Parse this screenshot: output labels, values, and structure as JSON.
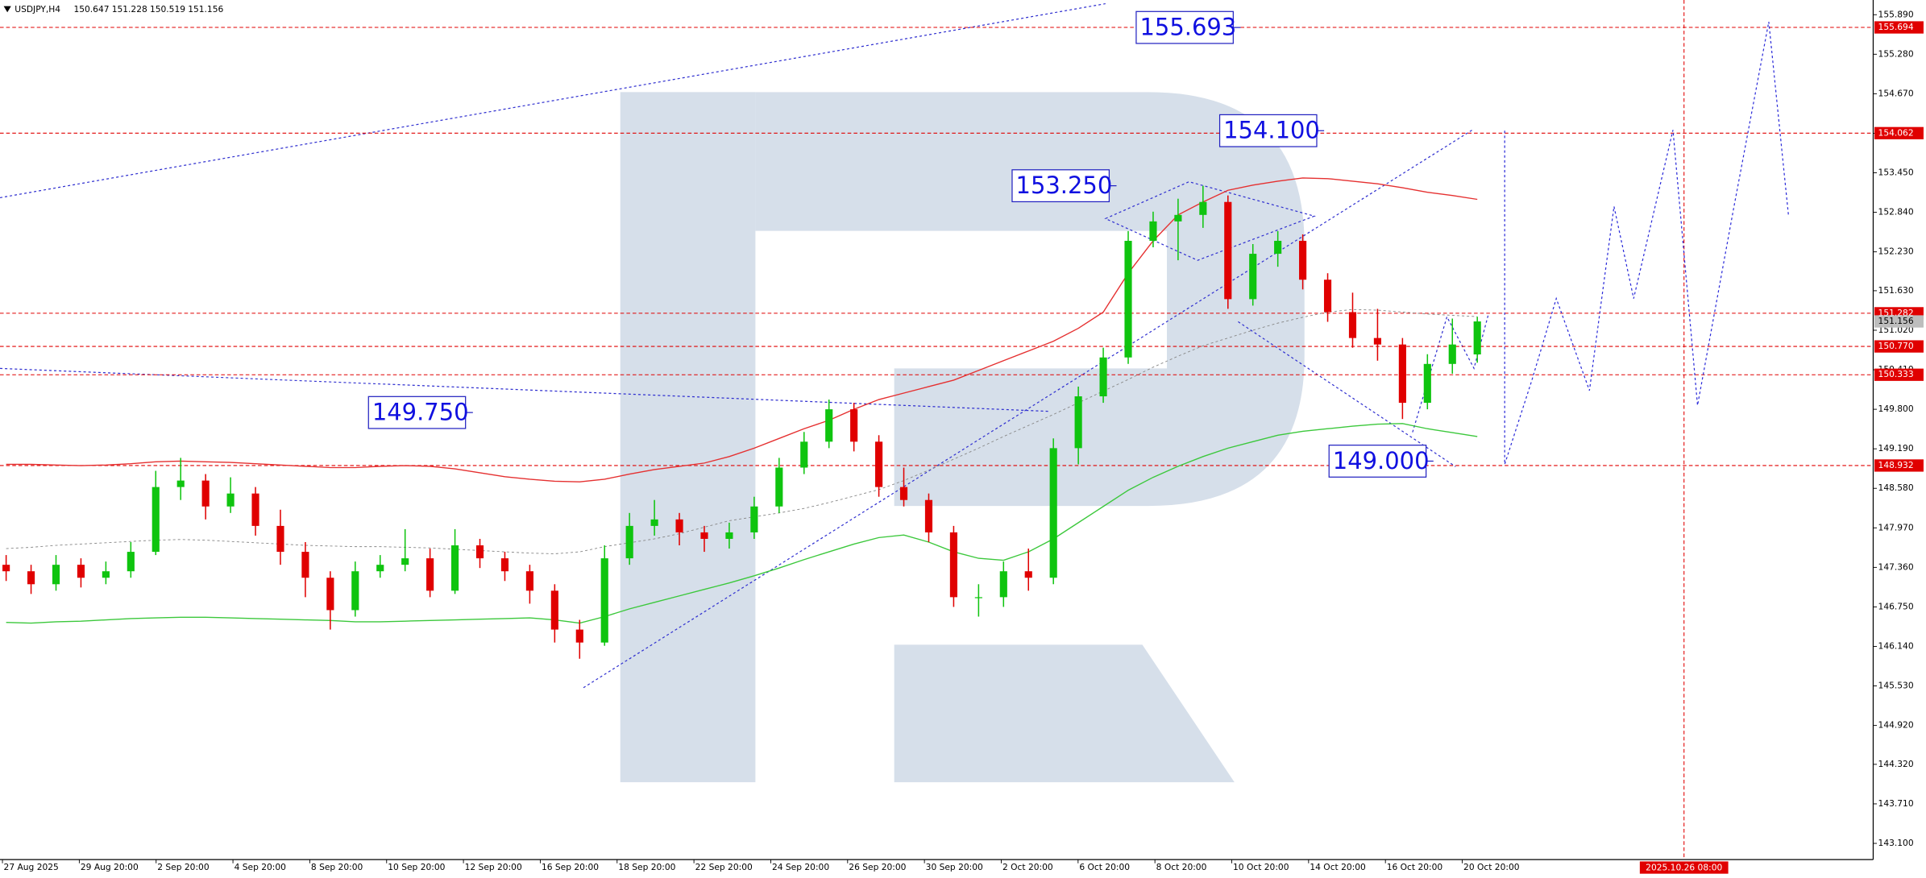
{
  "chart_data": {
    "type": "candlestick",
    "symbol": "USDJPY,H4",
    "ylim": [
      142.85,
      156.117
    ],
    "yticks": [
      {
        "value": 155.89,
        "label": "155.890"
      },
      {
        "value": 155.28,
        "label": "155.280"
      },
      {
        "value": 154.67,
        "label": "154.670"
      },
      {
        "value": 154.06,
        "label": "154.060"
      },
      {
        "value": 153.45,
        "label": "153.450"
      },
      {
        "value": 152.84,
        "label": "152.840"
      },
      {
        "value": 152.23,
        "label": "152.230"
      },
      {
        "value": 151.63,
        "label": "151.630"
      },
      {
        "value": 151.02,
        "label": "151.020"
      },
      {
        "value": 150.41,
        "label": "150.410"
      },
      {
        "value": 149.8,
        "label": "149.800"
      },
      {
        "value": 149.19,
        "label": "149.190"
      },
      {
        "value": 148.58,
        "label": "148.580"
      },
      {
        "value": 147.97,
        "label": "147.970"
      },
      {
        "value": 147.36,
        "label": "147.360"
      },
      {
        "value": 146.75,
        "label": "146.750"
      },
      {
        "value": 146.14,
        "label": "146.140"
      },
      {
        "value": 145.53,
        "label": "145.530"
      },
      {
        "value": 144.92,
        "label": "144.920"
      },
      {
        "value": 144.32,
        "label": "144.320"
      },
      {
        "value": 143.71,
        "label": "143.710"
      },
      {
        "value": 143.1,
        "label": "143.100"
      }
    ],
    "grid": false,
    "xticks": [
      "27 Aug 2025",
      "29 Aug 20:00",
      "2 Sep 20:00",
      "4 Sep 20:00",
      "8 Sep 20:00",
      "10 Sep 20:00",
      "12 Sep 20:00",
      "16 Sep 20:00",
      "18 Sep 20:00",
      "22 Sep 20:00",
      "24 Sep 20:00",
      "26 Sep 20:00",
      "30 Sep 20:00",
      "2 Oct 20:00",
      "6 Oct 20:00",
      "8 Oct 20:00",
      "10 Oct 20:00",
      "14 Oct 20:00",
      "16 Oct 20:00",
      "20 Oct 20:00"
    ],
    "time_marker": "2025.10.26 08:00",
    "up_color": "#0fc40f",
    "down_color": "#e00000",
    "ohlc": [
      [
        147.4,
        147.55,
        147.15,
        147.3
      ],
      [
        147.3,
        147.4,
        146.95,
        147.1
      ],
      [
        147.1,
        147.55,
        147.0,
        147.4
      ],
      [
        147.4,
        147.5,
        147.05,
        147.2
      ],
      [
        147.2,
        147.45,
        147.1,
        147.3
      ],
      [
        147.3,
        147.75,
        147.2,
        147.6
      ],
      [
        147.6,
        148.85,
        147.55,
        148.6
      ],
      [
        148.6,
        149.05,
        148.4,
        148.7
      ],
      [
        148.7,
        148.8,
        148.1,
        148.3
      ],
      [
        148.3,
        148.75,
        148.2,
        148.5
      ],
      [
        148.5,
        148.6,
        147.85,
        148.0
      ],
      [
        148.0,
        148.25,
        147.4,
        147.6
      ],
      [
        147.6,
        147.75,
        146.9,
        147.2
      ],
      [
        147.2,
        147.3,
        146.4,
        146.7
      ],
      [
        146.7,
        147.45,
        146.6,
        147.3
      ],
      [
        147.3,
        147.55,
        147.2,
        147.4
      ],
      [
        147.4,
        147.95,
        147.3,
        147.5
      ],
      [
        147.5,
        147.65,
        146.9,
        147.0
      ],
      [
        147.0,
        147.95,
        146.95,
        147.7
      ],
      [
        147.7,
        147.8,
        147.35,
        147.5
      ],
      [
        147.5,
        147.6,
        147.15,
        147.3
      ],
      [
        147.3,
        147.4,
        146.8,
        147.0
      ],
      [
        147.0,
        147.1,
        146.2,
        146.4
      ],
      [
        146.4,
        146.55,
        145.95,
        146.2
      ],
      [
        146.2,
        147.7,
        146.15,
        147.5
      ],
      [
        147.5,
        148.2,
        147.4,
        148.0
      ],
      [
        148.0,
        148.4,
        147.85,
        148.1
      ],
      [
        148.1,
        148.2,
        147.7,
        147.9
      ],
      [
        147.9,
        148.0,
        147.6,
        147.8
      ],
      [
        147.8,
        148.05,
        147.65,
        147.9
      ],
      [
        147.9,
        148.45,
        147.8,
        148.3
      ],
      [
        148.3,
        149.05,
        148.2,
        148.9
      ],
      [
        148.9,
        149.45,
        148.8,
        149.3
      ],
      [
        149.3,
        149.95,
        149.2,
        149.8
      ],
      [
        149.8,
        149.9,
        149.15,
        149.3
      ],
      [
        149.3,
        149.4,
        148.45,
        148.6
      ],
      [
        148.6,
        148.9,
        148.3,
        148.4
      ],
      [
        148.4,
        148.5,
        147.75,
        147.9
      ],
      [
        147.9,
        148.0,
        146.75,
        146.9
      ],
      [
        146.9,
        147.1,
        146.6,
        146.9
      ],
      [
        146.9,
        147.45,
        146.75,
        147.3
      ],
      [
        147.3,
        147.65,
        147.0,
        147.2
      ],
      [
        147.2,
        149.35,
        147.1,
        149.2
      ],
      [
        149.2,
        150.15,
        148.95,
        150.0
      ],
      [
        150.0,
        150.75,
        149.9,
        150.6
      ],
      [
        150.6,
        152.55,
        150.5,
        152.4
      ],
      [
        152.4,
        152.85,
        152.3,
        152.7
      ],
      [
        152.7,
        153.05,
        152.1,
        152.8
      ],
      [
        152.8,
        153.25,
        152.6,
        153.0
      ],
      [
        153.0,
        153.1,
        151.35,
        151.5
      ],
      [
        151.5,
        152.35,
        151.4,
        152.2
      ],
      [
        152.2,
        152.55,
        152.0,
        152.4
      ],
      [
        152.4,
        152.5,
        151.65,
        151.8
      ],
      [
        151.8,
        151.9,
        151.15,
        151.3
      ],
      [
        151.3,
        151.6,
        150.75,
        150.9
      ],
      [
        150.9,
        151.35,
        150.55,
        150.8
      ],
      [
        150.8,
        150.9,
        149.65,
        149.9
      ],
      [
        149.9,
        150.65,
        149.8,
        150.5
      ],
      [
        150.5,
        151.2,
        150.35,
        150.8
      ],
      [
        150.647,
        151.228,
        150.519,
        151.156
      ]
    ],
    "lines": [
      {
        "color": "#e53030",
        "dashed": false,
        "values": [
          148.95,
          148.95,
          148.94,
          148.93,
          148.94,
          148.96,
          148.99,
          149.0,
          148.99,
          148.98,
          148.96,
          148.94,
          148.92,
          148.9,
          148.9,
          148.92,
          148.93,
          148.92,
          148.88,
          148.82,
          148.76,
          148.72,
          148.69,
          148.68,
          148.72,
          148.8,
          148.87,
          148.92,
          148.97,
          149.07,
          149.2,
          149.35,
          149.5,
          149.63,
          149.8,
          149.95,
          150.05,
          150.15,
          150.25,
          150.4,
          150.55,
          150.7,
          150.85,
          151.05,
          151.3,
          151.9,
          152.4,
          152.8,
          153.0,
          153.18,
          153.26,
          153.32,
          153.37,
          153.36,
          153.32,
          153.28,
          153.22,
          153.15,
          153.1,
          153.04
        ]
      },
      {
        "color": "#3cc83c",
        "dashed": false,
        "values": [
          146.51,
          146.5,
          146.52,
          146.53,
          146.55,
          146.57,
          146.58,
          146.59,
          146.59,
          146.58,
          146.57,
          146.56,
          146.55,
          146.54,
          146.52,
          146.52,
          146.53,
          146.54,
          146.55,
          146.56,
          146.57,
          146.58,
          146.55,
          146.5,
          146.6,
          146.72,
          146.82,
          146.92,
          147.02,
          147.12,
          147.23,
          147.35,
          147.48,
          147.6,
          147.72,
          147.82,
          147.86,
          147.75,
          147.6,
          147.5,
          147.47,
          147.6,
          147.8,
          148.05,
          148.3,
          148.55,
          148.75,
          148.92,
          149.07,
          149.2,
          149.3,
          149.4,
          149.46,
          149.5,
          149.54,
          149.57,
          149.58,
          149.5,
          149.44,
          149.38
        ]
      },
      {
        "color": "#888888",
        "dashed": true,
        "values": [
          147.65,
          147.67,
          147.7,
          147.72,
          147.74,
          147.76,
          147.78,
          147.79,
          147.78,
          147.76,
          147.74,
          147.72,
          147.7,
          147.69,
          147.68,
          147.68,
          147.67,
          147.66,
          147.64,
          147.62,
          147.6,
          147.58,
          147.57,
          147.6,
          147.68,
          147.74,
          147.8,
          147.88,
          147.98,
          148.08,
          148.14,
          148.2,
          148.27,
          148.36,
          148.46,
          148.56,
          148.7,
          148.86,
          149.03,
          149.2,
          149.38,
          149.55,
          149.72,
          149.9,
          150.08,
          150.26,
          150.45,
          150.62,
          150.78,
          150.9,
          151.02,
          151.13,
          151.22,
          151.3,
          151.34,
          151.33,
          151.3,
          151.27,
          151.25,
          151.23
        ]
      }
    ],
    "levels": [
      {
        "value": 155.694,
        "label": "155.694"
      },
      {
        "value": 154.062,
        "label": "154.062"
      },
      {
        "value": 151.282,
        "label": "151.282"
      },
      {
        "value": 150.77,
        "label": "150.770"
      },
      {
        "value": 150.333,
        "label": "150.333"
      },
      {
        "value": 148.932,
        "label": "148.932"
      }
    ],
    "level_color": "#e00000",
    "forecast": {
      "color": "#2b2bd9",
      "values": [
        154.1,
        148.95,
        150.24,
        151.51,
        150.09,
        152.93,
        151.51,
        154.11,
        149.86,
        152.86,
        155.78,
        152.8
      ]
    },
    "annotations": [
      {
        "value": 155.693,
        "label": "155.693"
      },
      {
        "value": 154.1,
        "label": "154.100"
      },
      {
        "value": 153.25,
        "label": "153.250"
      },
      {
        "value": 149.75,
        "label": "149.750"
      },
      {
        "value": 149.0,
        "label": "149.000"
      }
    ]
  }
}
